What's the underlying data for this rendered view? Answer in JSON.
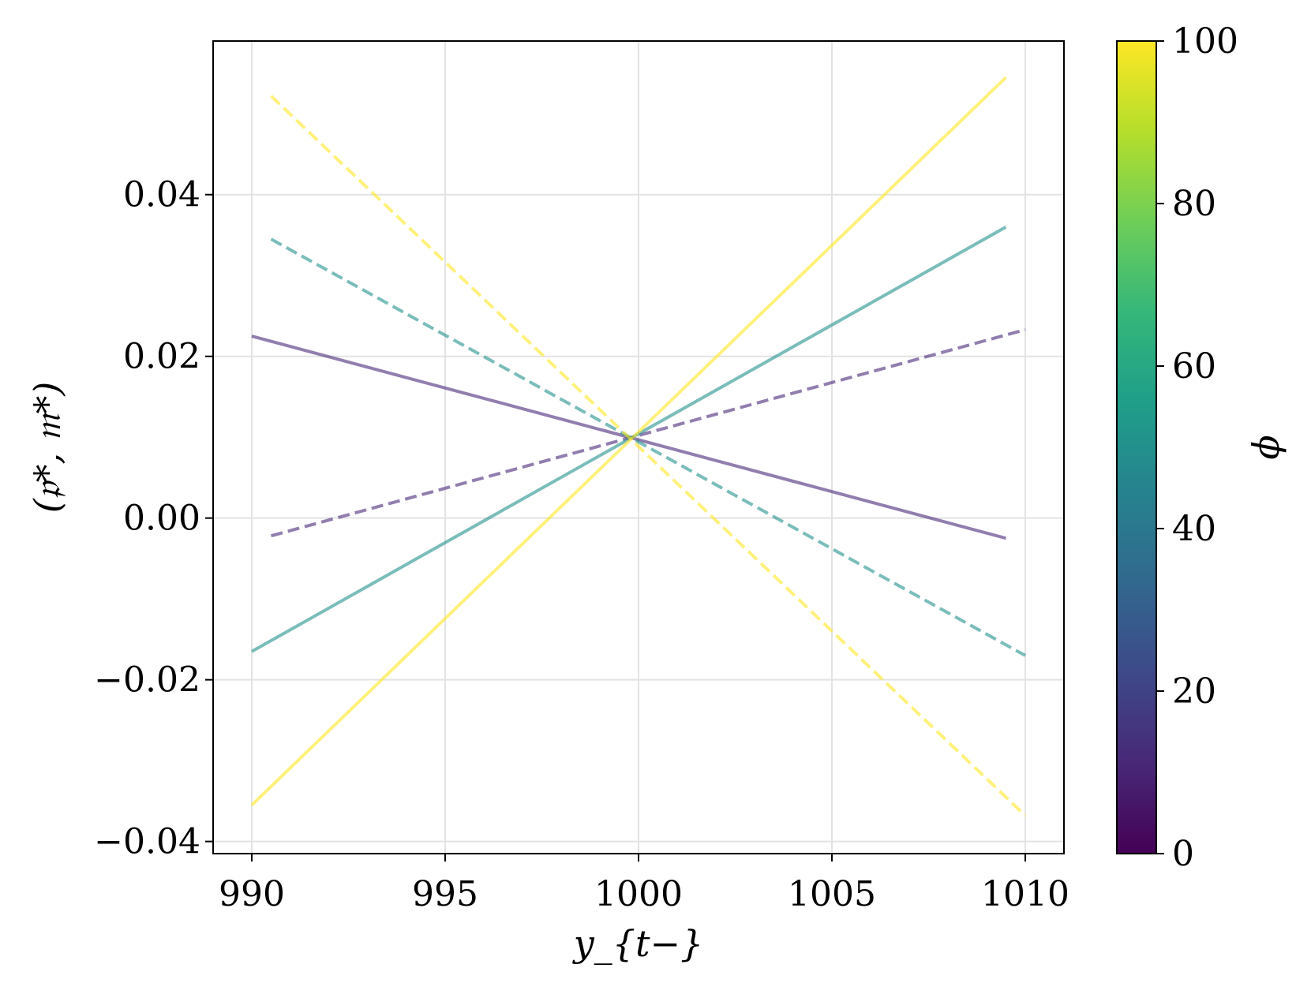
{
  "chart_data": {
    "type": "line",
    "xlabel": "y_{t−}",
    "ylabel": "(𝔭*, 𝔪*)",
    "xlim": [
      989,
      1011
    ],
    "ylim": [
      -0.0415,
      0.059
    ],
    "x_ticks": [
      990,
      995,
      1000,
      1005,
      1010
    ],
    "x_tick_labels": [
      "990",
      "995",
      "1000",
      "1005",
      "1010"
    ],
    "y_ticks": [
      -0.04,
      -0.02,
      0.0,
      0.02,
      0.04
    ],
    "y_tick_labels": [
      "−0.04",
      "−0.02",
      "0.00",
      "0.02",
      "0.04"
    ],
    "grid": true,
    "series": [
      {
        "phi": 10,
        "style": "solid",
        "color": "#482878",
        "x": [
          990,
          1009.5
        ],
        "values": [
          0.0225,
          -0.0025
        ]
      },
      {
        "phi": 10,
        "style": "dashed",
        "color": "#482878",
        "x": [
          990.5,
          1010
        ],
        "values": [
          -0.0022,
          0.0233
        ]
      },
      {
        "phi": 50,
        "style": "solid",
        "color": "#21918c",
        "x": [
          990,
          1009.5
        ],
        "values": [
          -0.0165,
          0.036
        ]
      },
      {
        "phi": 50,
        "style": "dashed",
        "color": "#21918c",
        "x": [
          990.5,
          1010
        ],
        "values": [
          0.0345,
          -0.017
        ]
      },
      {
        "phi": 100,
        "style": "solid",
        "color": "#fde725",
        "x": [
          990,
          1009.5
        ],
        "values": [
          -0.0355,
          0.0545
        ]
      },
      {
        "phi": 100,
        "style": "dashed",
        "color": "#fde725",
        "x": [
          990.5,
          1010
        ],
        "values": [
          0.0522,
          -0.0368
        ]
      }
    ],
    "colorbar": {
      "label": "ϕ",
      "range": [
        0,
        100
      ],
      "ticks": [
        0,
        20,
        40,
        60,
        80,
        100
      ],
      "tick_labels": [
        "0",
        "20",
        "40",
        "60",
        "80",
        "100"
      ],
      "colormap": [
        "#440154",
        "#482878",
        "#3e4989",
        "#31688e",
        "#26828e",
        "#1f9e89",
        "#35b779",
        "#6ece58",
        "#b5de2b",
        "#fde725"
      ]
    }
  }
}
